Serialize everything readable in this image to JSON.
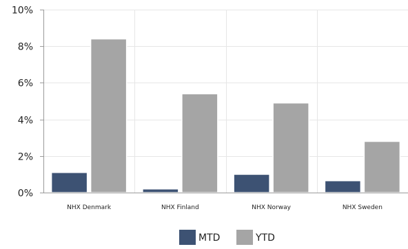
{
  "chart_data": {
    "type": "bar",
    "categories": [
      "NHX Denmark",
      "NHX Finland",
      "NHX Norway",
      "NHX Sweden"
    ],
    "series": [
      {
        "name": "MTD",
        "values": [
          1.1,
          0.2,
          1.0,
          0.65
        ],
        "color": "#3d5273"
      },
      {
        "name": "YTD",
        "values": [
          8.4,
          5.4,
          4.9,
          2.8
        ],
        "color": "#a5a5a5"
      }
    ],
    "y_ticks": [
      "0%",
      "2%",
      "4%",
      "6%",
      "8%",
      "10%"
    ],
    "ylim": [
      0,
      10
    ],
    "y_unit": "%",
    "grid": {
      "horizontal": true,
      "vertical": true
    },
    "legend_position": "bottom-center",
    "title": "",
    "xlabel": "",
    "ylabel": ""
  }
}
